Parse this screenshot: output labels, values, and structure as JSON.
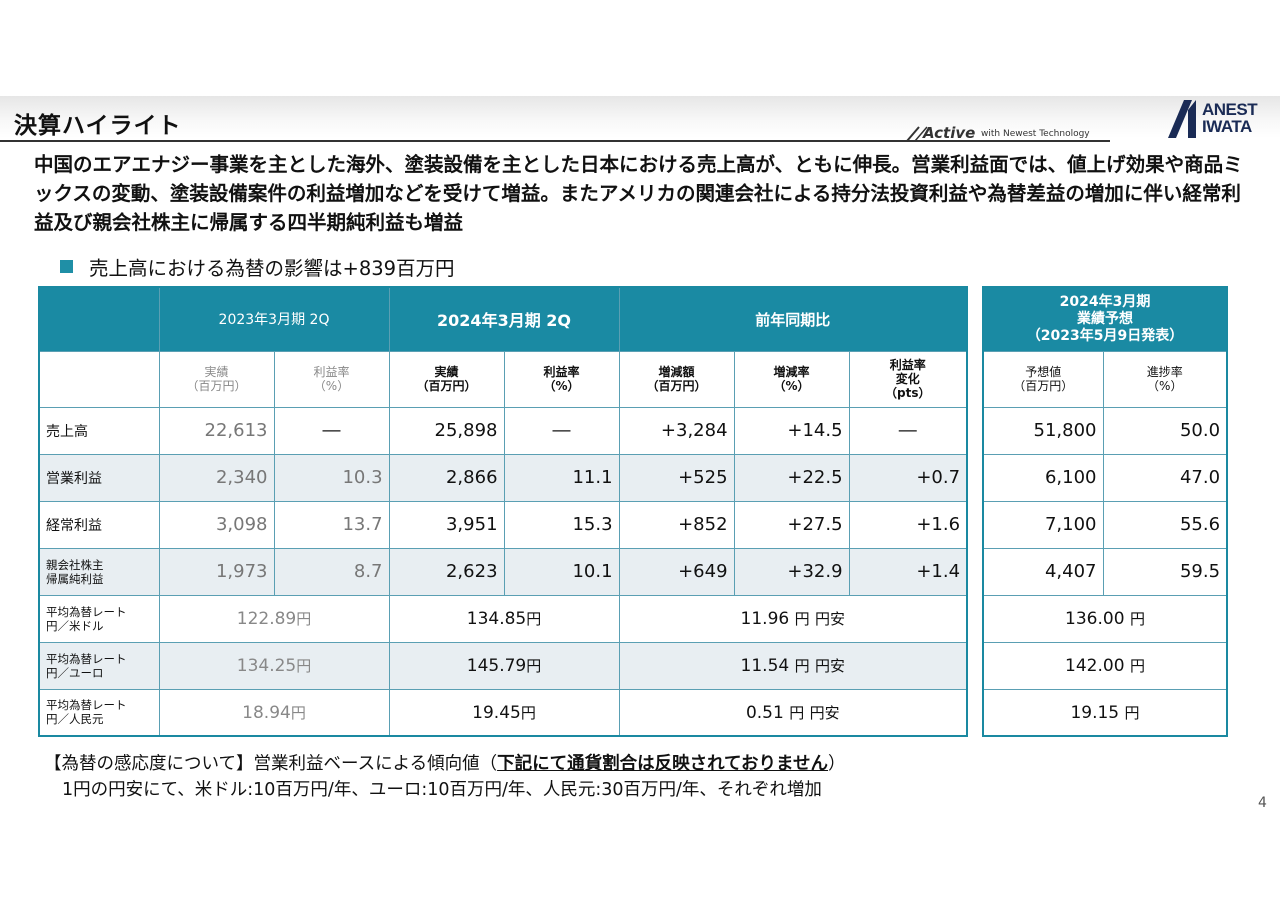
{
  "header": {
    "title": "決算ハイライト",
    "tagline_brand": "Active",
    "tagline_text": "with Newest Technology",
    "logo_line1": "ANEST",
    "logo_line2": "IWATA"
  },
  "summary": "中国のエアエナジー事業を主とした海外、塗装設備を主とした日本における売上高が、ともに伸長。営業利益面では、値上げ効果や商品ミックスの変動、塗装設備案件の利益増加などを受けて増益。またアメリカの関連会社による持分法投資利益や為替差益の増加に伴い経常利益及び親会社株主に帰属する四半期純利益も増益",
  "fx_bullet": "売上高における為替の影響は+839百万円",
  "table": {
    "col_groups": [
      "2023年3月期 2Q",
      "2024年3月期 2Q",
      "前年同期比"
    ],
    "sub_headers": {
      "prev_actual": [
        "実績",
        "（百万円）"
      ],
      "prev_margin": [
        "利益率",
        "（%）"
      ],
      "cur_actual": [
        "実績",
        "（百万円）"
      ],
      "cur_margin": [
        "利益率",
        "（%）"
      ],
      "diff_amount": [
        "増減額",
        "（百万円）"
      ],
      "diff_rate": [
        "増減率",
        "（%）"
      ],
      "margin_change": [
        "利益率",
        "変化",
        "（pts）"
      ]
    },
    "rows": [
      {
        "label": "売上高",
        "prev": "22,613",
        "prev_margin": "―",
        "cur": "25,898",
        "cur_margin": "―",
        "diff": "+3,284",
        "rate": "+14.5",
        "change": "―"
      },
      {
        "label": "営業利益",
        "prev": "2,340",
        "prev_margin": "10.3",
        "cur": "2,866",
        "cur_margin": "11.1",
        "diff": "+525",
        "rate": "+22.5",
        "change": "+0.7"
      },
      {
        "label": "経常利益",
        "prev": "3,098",
        "prev_margin": "13.7",
        "cur": "3,951",
        "cur_margin": "15.3",
        "diff": "+852",
        "rate": "+27.5",
        "change": "+1.6"
      },
      {
        "label_1": "親会社株主",
        "label_2": "帰属純利益",
        "prev": "1,973",
        "prev_margin": "8.7",
        "cur": "2,623",
        "cur_margin": "10.1",
        "diff": "+649",
        "rate": "+32.9",
        "change": "+1.4"
      }
    ],
    "fx_rows": [
      {
        "label_1": "平均為替レート",
        "label_2": "円／米ドル",
        "prev": "122.89",
        "cur": "134.85",
        "diff": "11.96",
        "unit": "円",
        "weak": "円安"
      },
      {
        "label_1": "平均為替レート",
        "label_2": "円／ユーロ",
        "prev": "134.25",
        "cur": "145.79",
        "diff": "11.54",
        "unit": "円",
        "weak": "円安"
      },
      {
        "label_1": "平均為替レート",
        "label_2": "円／人民元",
        "prev": "18.94",
        "cur": "19.45",
        "diff": "0.51",
        "unit": "円",
        "weak": "円安"
      }
    ]
  },
  "forecast": {
    "header_1": "2024年3月期",
    "header_2": "業績予想",
    "header_3": "（2023年5月9日発表）",
    "sub_forecast": [
      "予想値",
      "（百万円）"
    ],
    "sub_progress": [
      "進捗率",
      "（%）"
    ],
    "rows": [
      {
        "value": "51,800",
        "progress": "50.0"
      },
      {
        "value": "6,100",
        "progress": "47.0"
      },
      {
        "value": "7,100",
        "progress": "55.6"
      },
      {
        "value": "4,407",
        "progress": "59.5"
      }
    ],
    "fx": [
      "136.00",
      "142.00",
      "19.15"
    ]
  },
  "note": {
    "prefix": "【為替の感応度について】営業利益ベースによる傾向値（",
    "underlined": "下記にて通貨割合は反映されておりません",
    "suffix": "）",
    "line2": "1円の円安にて、米ドル:10百万円/年、ユーロ:10百万円/年、人民元:30百万円/年、それぞれ増加"
  },
  "page_number": "4",
  "colors": {
    "accent": "#1a8aa3",
    "row_shade": "#e8eef2",
    "bullet": "#1f8fa6"
  }
}
